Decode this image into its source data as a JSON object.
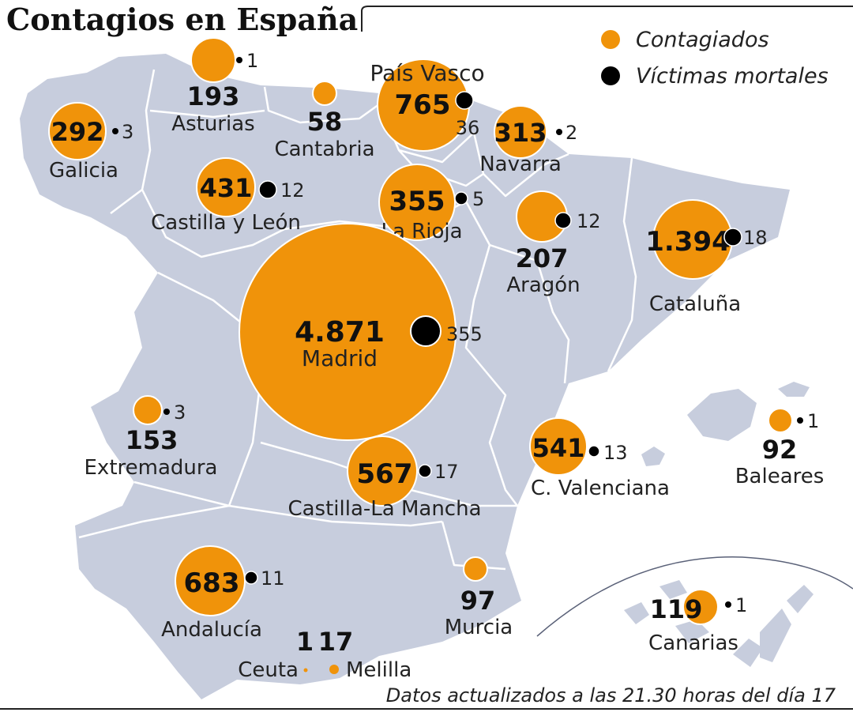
{
  "title": "Contagios en España",
  "legend": {
    "infected_label": "Contagiados",
    "deaths_label": "Víctimas mortales"
  },
  "footer": "Datos actualizados a las 21.30 horas del día 17",
  "colors": {
    "infected": "#f0930a",
    "deaths": "#000000",
    "land": "#c7cddd",
    "border": "#ffffff"
  },
  "regions": [
    {
      "name": "Galicia",
      "infected": "292",
      "deaths": "3"
    },
    {
      "name": "Asturias",
      "infected": "193",
      "deaths": "1"
    },
    {
      "name": "Cantabria",
      "infected": "58",
      "deaths": ""
    },
    {
      "name": "País Vasco",
      "infected": "765",
      "deaths": "36"
    },
    {
      "name": "Navarra",
      "infected": "313",
      "deaths": "2"
    },
    {
      "name": "Castilla y León",
      "infected": "431",
      "deaths": "12"
    },
    {
      "name": "La Rioja",
      "infected": "355",
      "deaths": "5"
    },
    {
      "name": "Aragón",
      "infected": "207",
      "deaths": "12"
    },
    {
      "name": "Cataluña",
      "infected": "1.394",
      "deaths": "18"
    },
    {
      "name": "Madrid",
      "infected": "4.871",
      "deaths": "355"
    },
    {
      "name": "Extremadura",
      "infected": "153",
      "deaths": "3"
    },
    {
      "name": "Castilla-La Mancha",
      "infected": "567",
      "deaths": "17"
    },
    {
      "name": "C. Valenciana",
      "infected": "541",
      "deaths": "13"
    },
    {
      "name": "Baleares",
      "infected": "92",
      "deaths": "1"
    },
    {
      "name": "Andalucía",
      "infected": "683",
      "deaths": "11"
    },
    {
      "name": "Murcia",
      "infected": "97",
      "deaths": ""
    },
    {
      "name": "Canarias",
      "infected": "119",
      "deaths": "1"
    },
    {
      "name": "Ceuta",
      "infected": "1",
      "deaths": ""
    },
    {
      "name": "Melilla",
      "infected": "17",
      "deaths": ""
    }
  ]
}
